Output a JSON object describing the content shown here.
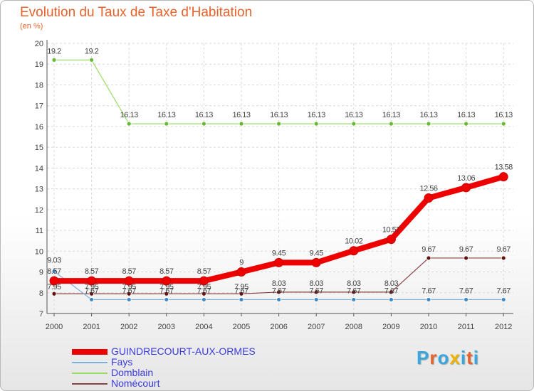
{
  "title": "Evolution du Taux de Taxe d'Habitation",
  "subtitle": "(en %)",
  "brand": "Proxiti",
  "brand_colors": [
    "#3aa6dd",
    "#e8622c",
    "#3aa6dd",
    "#f0b400",
    "#3aa6dd",
    "#e8622c",
    "#3aa6dd"
  ],
  "chart_data": {
    "type": "line",
    "title": "Evolution du Taux de Taxe d'Habitation",
    "ylabel": "(en %)",
    "xlabel": "",
    "ylim": [
      7,
      20
    ],
    "yticks": [
      "7",
      "8",
      "9",
      "10",
      "11",
      "12",
      "13",
      "14",
      "15",
      "16",
      "17",
      "18",
      "19",
      "20"
    ],
    "categories": [
      "2000",
      "2001",
      "2002",
      "2003",
      "2004",
      "2005",
      "2006",
      "2007",
      "2008",
      "2009",
      "2010",
      "2011",
      "2012"
    ],
    "series": [
      {
        "name": "GUINDRECOURT-AUX-ORMES",
        "color": "#ee0000",
        "marker_color": "#ee0000",
        "values": [
          8.57,
          8.57,
          8.57,
          8.57,
          8.57,
          9,
          9.45,
          9.45,
          10.02,
          10.57,
          12.56,
          13.06,
          13.58
        ],
        "labels": [
          "8.57",
          "8.57",
          "8.57",
          "8.57",
          "8.57",
          "9",
          "9.45",
          "9.45",
          "10.02",
          "10.57",
          "12.56",
          "13.06",
          "13.58"
        ]
      },
      {
        "name": "Fays",
        "color": "#7fb1d8",
        "marker_color": "#3f8ac6",
        "values": [
          9.03,
          7.67,
          7.67,
          7.67,
          7.67,
          7.67,
          7.67,
          7.67,
          7.67,
          7.67,
          7.67,
          7.67,
          7.67
        ],
        "labels": [
          "9.03",
          "7.67",
          "7.67",
          "7.67",
          "7.67",
          "7.67",
          "7.67",
          "7.67",
          "7.67",
          "7.67",
          "7.67",
          "7.67",
          "7.67"
        ]
      },
      {
        "name": "Domblain",
        "color": "#99dd66",
        "marker_color": "#66bb33",
        "values": [
          19.2,
          19.2,
          16.13,
          16.13,
          16.13,
          16.13,
          16.13,
          16.13,
          16.13,
          16.13,
          16.13,
          16.13,
          16.13
        ],
        "labels": [
          "19.2",
          "19.2",
          "16.13",
          "16.13",
          "16.13",
          "16.13",
          "16.13",
          "16.13",
          "16.13",
          "16.13",
          "16.13",
          "16.13",
          "16.13"
        ]
      },
      {
        "name": "Nomécourt",
        "color": "#884444",
        "marker_color": "#661111",
        "values": [
          7.95,
          7.95,
          7.95,
          7.95,
          7.95,
          7.95,
          8.03,
          8.03,
          8.03,
          8.03,
          9.67,
          9.67,
          9.67
        ],
        "labels": [
          "7.95",
          "7.95",
          "7.95",
          "7.95",
          "7.95",
          "7.95",
          "8.03",
          "8.03",
          "8.03",
          "8.03",
          "9.67",
          "9.67",
          "9.67"
        ]
      }
    ],
    "legend": "bottom-left"
  }
}
